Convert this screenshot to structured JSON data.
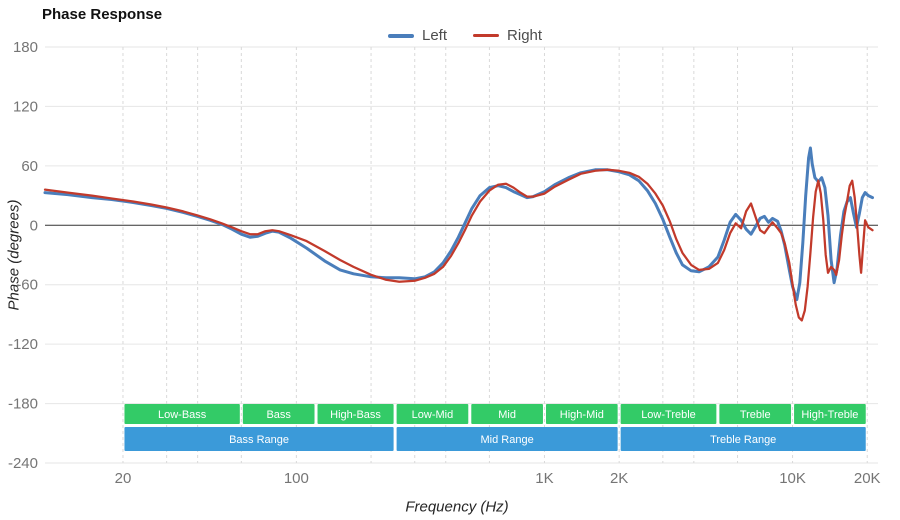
{
  "chart_data": {
    "type": "line",
    "title": "Phase Response",
    "xlabel": "Frequency (Hz)",
    "ylabel": "Phase (degrees)",
    "x_scale": "log",
    "grid": true,
    "legend_position": "top-center",
    "x_range_hz": [
      9.7,
      22100
    ],
    "y_range_degrees": [
      -240,
      180
    ],
    "y_ticks": [
      180,
      120,
      60,
      0,
      -60,
      -120,
      -180,
      -240
    ],
    "x_ticks": [
      {
        "f": 20,
        "label": "20"
      },
      {
        "f": 100,
        "label": "100"
      },
      {
        "f": 1000,
        "label": "1K"
      },
      {
        "f": 2000,
        "label": "2K"
      },
      {
        "f": 10000,
        "label": "10K"
      },
      {
        "f": 20000,
        "label": "20K"
      }
    ],
    "x_gridlines_hz": [
      20,
      30,
      40,
      60,
      100,
      200,
      300,
      400,
      600,
      1000,
      2000,
      3000,
      4000,
      6000,
      10000,
      20000
    ],
    "colors": {
      "grid_h": "#e6e6e6",
      "grid_v": "#d9d9d9",
      "zero_line": "#333333",
      "tick_label": "#757575"
    },
    "series": [
      {
        "name": "Left",
        "color": "#4a7ebb",
        "stroke_width": 3,
        "points_hz_deg": [
          [
            9.7,
            33
          ],
          [
            12,
            31
          ],
          [
            15,
            28
          ],
          [
            18,
            26
          ],
          [
            22,
            23
          ],
          [
            26,
            20
          ],
          [
            30,
            17
          ],
          [
            35,
            13
          ],
          [
            40,
            9
          ],
          [
            45,
            5
          ],
          [
            50,
            1
          ],
          [
            55,
            -4
          ],
          [
            60,
            -9
          ],
          [
            65,
            -12
          ],
          [
            70,
            -11
          ],
          [
            75,
            -8
          ],
          [
            80,
            -6
          ],
          [
            85,
            -7
          ],
          [
            95,
            -13
          ],
          [
            110,
            -23
          ],
          [
            130,
            -36
          ],
          [
            150,
            -45
          ],
          [
            170,
            -49
          ],
          [
            200,
            -52
          ],
          [
            230,
            -53
          ],
          [
            260,
            -53
          ],
          [
            300,
            -54
          ],
          [
            330,
            -52
          ],
          [
            360,
            -47
          ],
          [
            390,
            -38
          ],
          [
            420,
            -26
          ],
          [
            450,
            -12
          ],
          [
            480,
            3
          ],
          [
            510,
            17
          ],
          [
            550,
            30
          ],
          [
            600,
            38
          ],
          [
            650,
            40
          ],
          [
            700,
            38
          ],
          [
            750,
            34
          ],
          [
            800,
            31
          ],
          [
            850,
            28
          ],
          [
            900,
            29
          ],
          [
            1000,
            34
          ],
          [
            1100,
            41
          ],
          [
            1250,
            48
          ],
          [
            1400,
            53
          ],
          [
            1600,
            56
          ],
          [
            1800,
            56
          ],
          [
            2000,
            54
          ],
          [
            2200,
            51
          ],
          [
            2400,
            45
          ],
          [
            2600,
            35
          ],
          [
            2800,
            22
          ],
          [
            3000,
            6
          ],
          [
            3200,
            -12
          ],
          [
            3400,
            -28
          ],
          [
            3600,
            -40
          ],
          [
            3900,
            -46
          ],
          [
            4200,
            -47
          ],
          [
            4600,
            -42
          ],
          [
            5000,
            -32
          ],
          [
            5300,
            -15
          ],
          [
            5600,
            3
          ],
          [
            5900,
            11
          ],
          [
            6200,
            5
          ],
          [
            6500,
            -4
          ],
          [
            6800,
            -9
          ],
          [
            7100,
            -1
          ],
          [
            7400,
            7
          ],
          [
            7700,
            9
          ],
          [
            8000,
            3
          ],
          [
            8300,
            7
          ],
          [
            8700,
            4
          ],
          [
            9000,
            -6
          ],
          [
            9300,
            -20
          ],
          [
            9700,
            -45
          ],
          [
            10000,
            -62
          ],
          [
            10400,
            -75
          ],
          [
            10700,
            -58
          ],
          [
            11000,
            -18
          ],
          [
            11300,
            30
          ],
          [
            11600,
            68
          ],
          [
            11800,
            78
          ],
          [
            12000,
            62
          ],
          [
            12300,
            48
          ],
          [
            12700,
            44
          ],
          [
            13100,
            48
          ],
          [
            13500,
            38
          ],
          [
            13900,
            10
          ],
          [
            14300,
            -35
          ],
          [
            14700,
            -58
          ],
          [
            15100,
            -44
          ],
          [
            15600,
            -10
          ],
          [
            16100,
            14
          ],
          [
            16600,
            24
          ],
          [
            17100,
            28
          ],
          [
            17600,
            12
          ],
          [
            18100,
            -2
          ],
          [
            18600,
            12
          ],
          [
            19100,
            28
          ],
          [
            19600,
            33
          ],
          [
            20200,
            30
          ],
          [
            21000,
            28
          ]
        ]
      },
      {
        "name": "Right",
        "color": "#c23a2b",
        "stroke_width": 2.25,
        "points_hz_deg": [
          [
            9.7,
            36
          ],
          [
            12,
            33
          ],
          [
            15,
            30
          ],
          [
            18,
            27
          ],
          [
            22,
            24
          ],
          [
            26,
            21
          ],
          [
            30,
            18
          ],
          [
            35,
            14
          ],
          [
            40,
            10
          ],
          [
            45,
            6
          ],
          [
            50,
            2
          ],
          [
            55,
            -2
          ],
          [
            60,
            -6
          ],
          [
            65,
            -9
          ],
          [
            70,
            -9
          ],
          [
            75,
            -6
          ],
          [
            80,
            -5
          ],
          [
            85,
            -6
          ],
          [
            95,
            -10
          ],
          [
            110,
            -16
          ],
          [
            130,
            -26
          ],
          [
            150,
            -35
          ],
          [
            170,
            -42
          ],
          [
            200,
            -50
          ],
          [
            230,
            -55
          ],
          [
            260,
            -57
          ],
          [
            300,
            -56
          ],
          [
            330,
            -53
          ],
          [
            360,
            -49
          ],
          [
            390,
            -42
          ],
          [
            420,
            -31
          ],
          [
            450,
            -18
          ],
          [
            480,
            -4
          ],
          [
            510,
            10
          ],
          [
            550,
            24
          ],
          [
            600,
            35
          ],
          [
            650,
            41
          ],
          [
            700,
            42
          ],
          [
            750,
            38
          ],
          [
            800,
            33
          ],
          [
            850,
            29
          ],
          [
            900,
            29
          ],
          [
            1000,
            32
          ],
          [
            1100,
            39
          ],
          [
            1250,
            46
          ],
          [
            1400,
            52
          ],
          [
            1600,
            55
          ],
          [
            1800,
            56
          ],
          [
            2000,
            55
          ],
          [
            2200,
            53
          ],
          [
            2400,
            49
          ],
          [
            2600,
            42
          ],
          [
            2800,
            32
          ],
          [
            3000,
            20
          ],
          [
            3200,
            4
          ],
          [
            3400,
            -14
          ],
          [
            3600,
            -28
          ],
          [
            3900,
            -40
          ],
          [
            4200,
            -45
          ],
          [
            4600,
            -44
          ],
          [
            5000,
            -38
          ],
          [
            5300,
            -25
          ],
          [
            5600,
            -8
          ],
          [
            5900,
            2
          ],
          [
            6200,
            -3
          ],
          [
            6500,
            14
          ],
          [
            6800,
            22
          ],
          [
            7100,
            8
          ],
          [
            7400,
            -5
          ],
          [
            7700,
            -8
          ],
          [
            8000,
            -2
          ],
          [
            8300,
            3
          ],
          [
            8700,
            -3
          ],
          [
            9000,
            -8
          ],
          [
            9300,
            -18
          ],
          [
            9700,
            -38
          ],
          [
            10000,
            -60
          ],
          [
            10300,
            -80
          ],
          [
            10600,
            -93
          ],
          [
            10900,
            -96
          ],
          [
            11200,
            -86
          ],
          [
            11500,
            -62
          ],
          [
            11800,
            -28
          ],
          [
            12100,
            8
          ],
          [
            12400,
            34
          ],
          [
            12700,
            45
          ],
          [
            13000,
            32
          ],
          [
            13300,
            5
          ],
          [
            13600,
            -30
          ],
          [
            13900,
            -48
          ],
          [
            14300,
            -42
          ],
          [
            14700,
            -45
          ],
          [
            15000,
            -50
          ],
          [
            15400,
            -35
          ],
          [
            15800,
            -10
          ],
          [
            16200,
            10
          ],
          [
            16600,
            25
          ],
          [
            17000,
            40
          ],
          [
            17400,
            45
          ],
          [
            17800,
            28
          ],
          [
            18200,
            0
          ],
          [
            18600,
            -30
          ],
          [
            18900,
            -48
          ],
          [
            19200,
            -25
          ],
          [
            19600,
            5
          ],
          [
            20200,
            -2
          ],
          [
            21000,
            -5
          ]
        ]
      }
    ],
    "frequency_bands": {
      "sub_band_color": "#33cb67",
      "range_band_color": "#3b9ad9",
      "sub_bands": [
        {
          "label": "Low-Bass",
          "from_hz": 20,
          "to_hz": 60
        },
        {
          "label": "Bass",
          "from_hz": 60,
          "to_hz": 120
        },
        {
          "label": "High-Bass",
          "from_hz": 120,
          "to_hz": 250
        },
        {
          "label": "Low-Mid",
          "from_hz": 250,
          "to_hz": 500
        },
        {
          "label": "Mid",
          "from_hz": 500,
          "to_hz": 1000
        },
        {
          "label": "High-Mid",
          "from_hz": 1000,
          "to_hz": 2000
        },
        {
          "label": "Low-Treble",
          "from_hz": 2000,
          "to_hz": 5000
        },
        {
          "label": "Treble",
          "from_hz": 5000,
          "to_hz": 10000
        },
        {
          "label": "High-Treble",
          "from_hz": 10000,
          "to_hz": 20000
        }
      ],
      "range_bands": [
        {
          "label": "Bass Range",
          "from_hz": 20,
          "to_hz": 250
        },
        {
          "label": "Mid Range",
          "from_hz": 250,
          "to_hz": 2000
        },
        {
          "label": "Treble Range",
          "from_hz": 2000,
          "to_hz": 20000
        }
      ]
    }
  }
}
